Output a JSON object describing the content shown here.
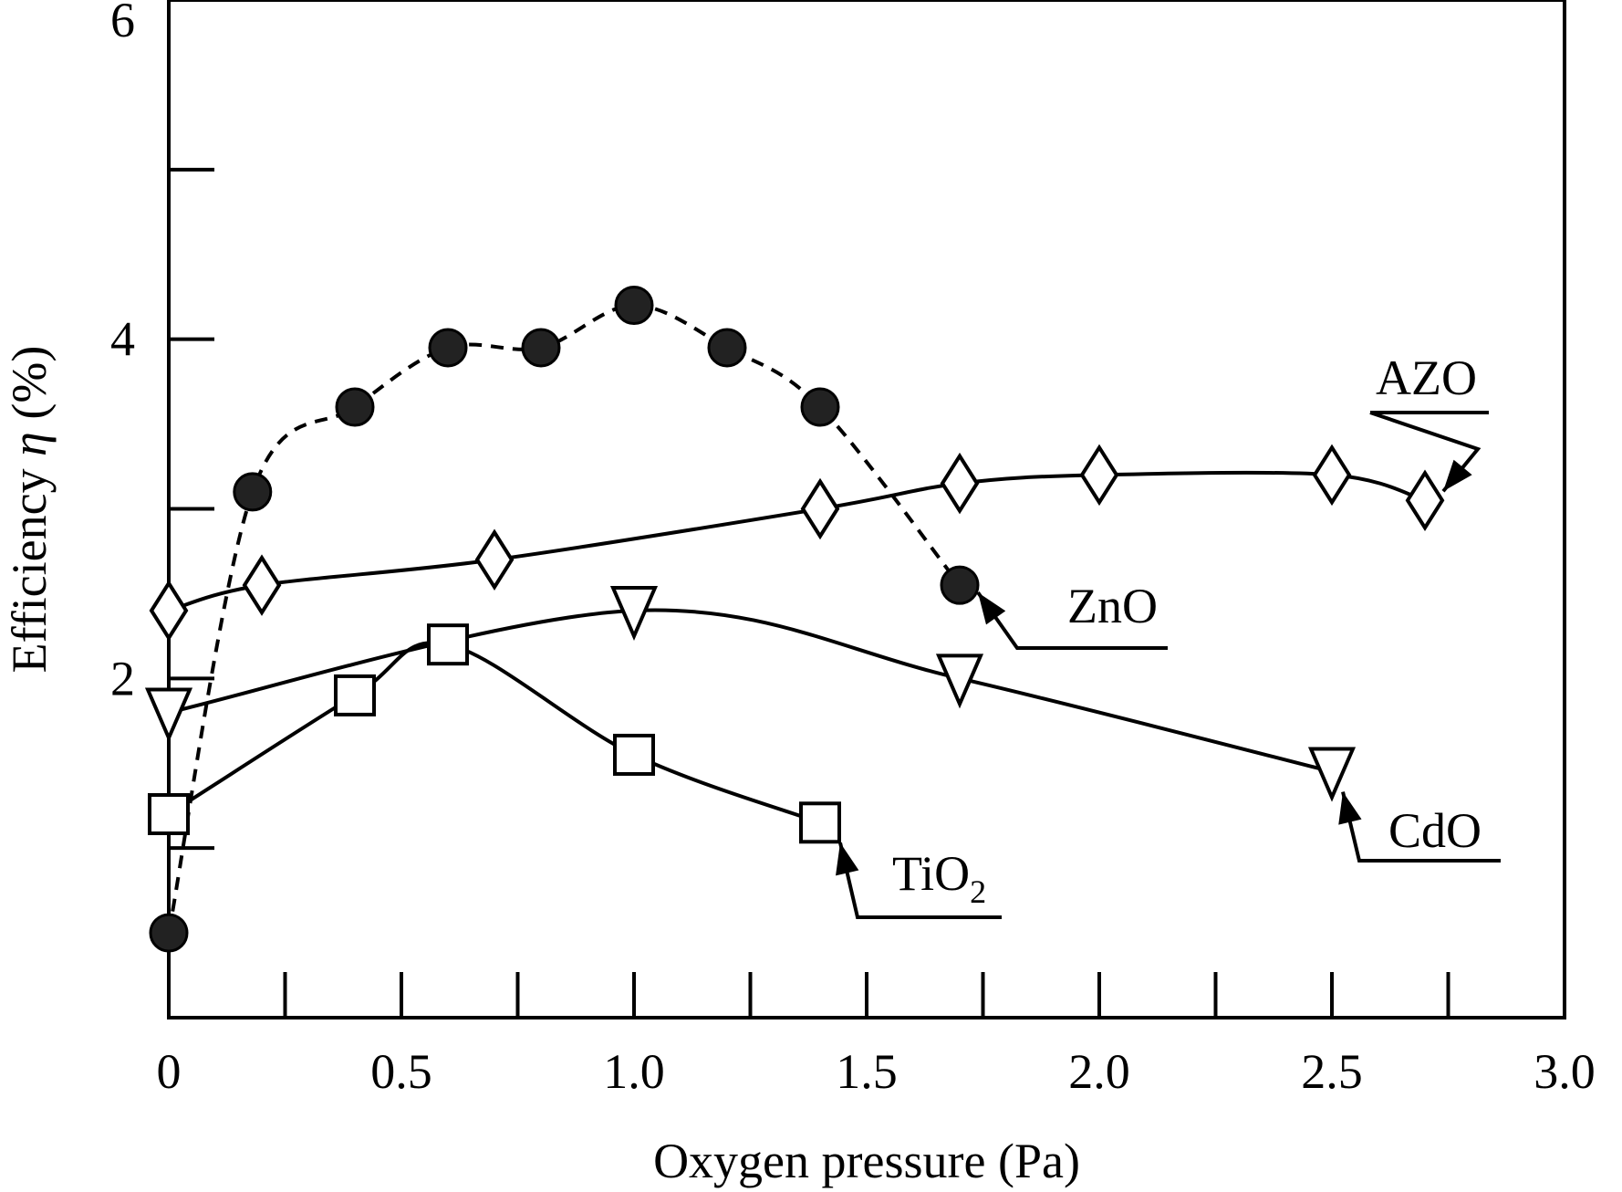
{
  "chart_data": {
    "type": "line",
    "xlabel": "Oxygen pressure (Pa)",
    "ylabel": {
      "prefix": "Efficiency ",
      "symbol": "η",
      "suffix": " (%)"
    },
    "xlim": [
      0,
      3.0
    ],
    "ylim": [
      0,
      6
    ],
    "x_ticks": [
      0,
      0.5,
      1.0,
      1.5,
      2.0,
      2.5,
      3.0
    ],
    "x_tick_labels": [
      "0",
      "0.5",
      "1.0",
      "1.5",
      "2.0",
      "2.5",
      "3.0"
    ],
    "x_minor_ticks": [
      0.25,
      0.75,
      1.25,
      1.75,
      2.25,
      2.75
    ],
    "y_ticks": [
      2,
      4,
      6
    ],
    "y_tick_labels": [
      "2",
      "4",
      "6"
    ],
    "y_minor_ticks": [
      1,
      3,
      5
    ],
    "grid": false,
    "series": [
      {
        "name": "ZnO",
        "marker": "filled-circle",
        "line": "dashed",
        "x": [
          0.0,
          0.18,
          0.4,
          0.6,
          0.8,
          1.0,
          1.2,
          1.4,
          1.7
        ],
        "y": [
          0.5,
          3.1,
          3.6,
          3.95,
          3.95,
          4.2,
          3.95,
          3.6,
          2.55
        ]
      },
      {
        "name": "AZO",
        "marker": "diamond",
        "line": "solid",
        "x": [
          0.0,
          0.2,
          0.7,
          1.4,
          1.7,
          2.0,
          2.5,
          2.7
        ],
        "y": [
          2.4,
          2.55,
          2.7,
          3.0,
          3.15,
          3.2,
          3.2,
          3.05
        ]
      },
      {
        "name": "CdO",
        "marker": "triangle-down",
        "line": "solid",
        "x": [
          0.0,
          1.0,
          1.7,
          2.5
        ],
        "y": [
          1.8,
          2.4,
          2.0,
          1.45
        ]
      },
      {
        "name": "TiO",
        "name_subscript": "2",
        "marker": "square",
        "line": "solid",
        "x": [
          0.0,
          0.4,
          0.6,
          1.0,
          1.4
        ],
        "y": [
          1.2,
          1.9,
          2.2,
          1.55,
          1.15
        ]
      }
    ]
  }
}
